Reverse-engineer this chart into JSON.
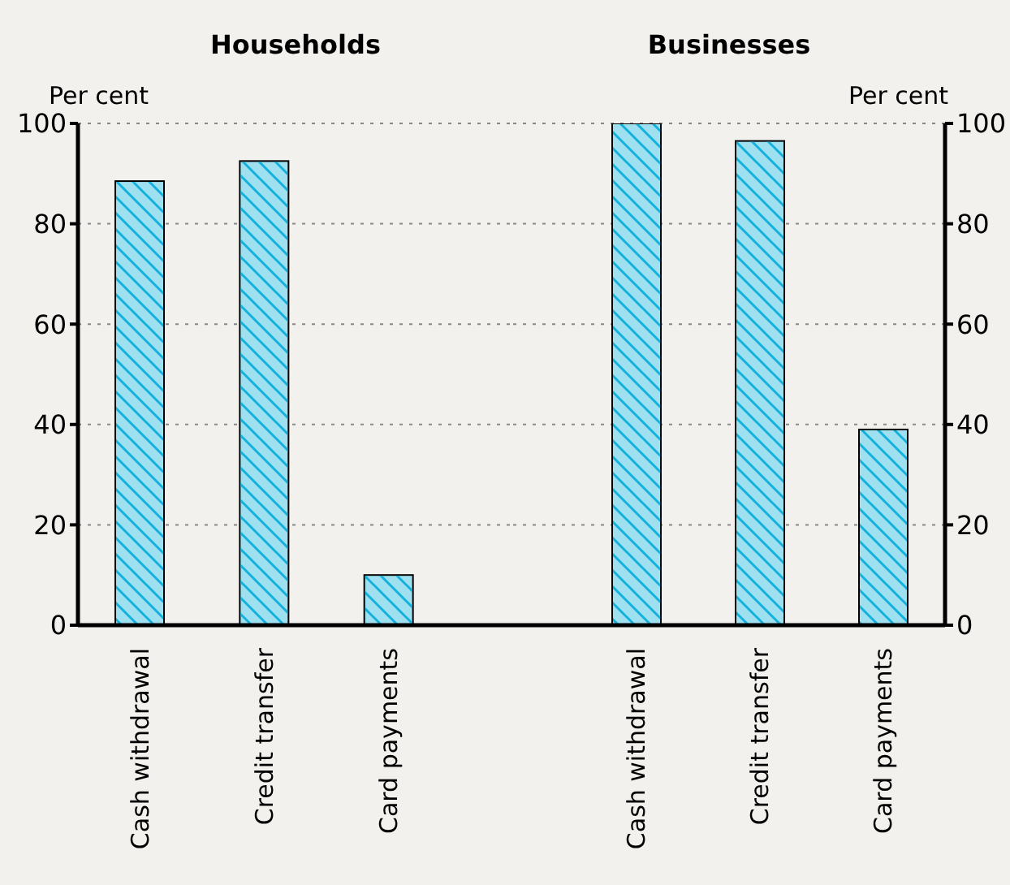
{
  "chart_data": [
    {
      "type": "bar",
      "title": "Households",
      "ylabel": "Per cent",
      "categories": [
        "Cash withdrawal",
        "Credit transfer",
        "Card payments"
      ],
      "series": [
        {
          "color": "#9ee0f0",
          "values": [
            88.5,
            92.5,
            10
          ]
        }
      ],
      "ylim": [
        0,
        100
      ],
      "yticks": [
        0,
        20,
        40,
        60,
        80,
        100
      ],
      "grid": "y",
      "legend": false
    },
    {
      "type": "bar",
      "title": "Businesses",
      "y2label": "Per cent",
      "categories": [
        "Cash withdrawal",
        "Credit transfer",
        "Card payments"
      ],
      "series": [
        {
          "color": "#9ee0f0",
          "values": [
            100,
            96.5,
            39
          ],
          "axis": "y2"
        }
      ],
      "y2lim": [
        0,
        100
      ],
      "y2ticks": [
        0,
        20,
        40,
        60,
        80,
        100
      ],
      "grid": "y",
      "legend": false
    }
  ]
}
